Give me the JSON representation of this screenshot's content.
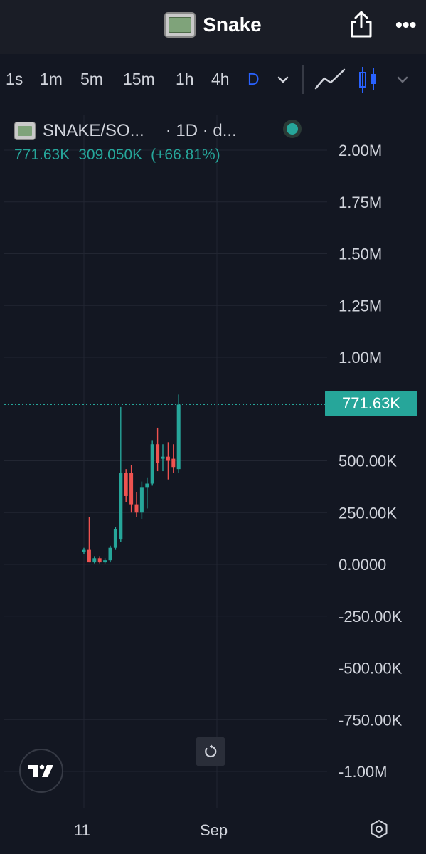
{
  "header": {
    "title": "Snake",
    "share_icon": "share-icon",
    "more_icon": "more-icon",
    "more_label": "•••"
  },
  "toolbar": {
    "intervals": [
      "1s",
      "1m",
      "5m",
      "15m",
      "1h",
      "4h",
      "D"
    ],
    "active_interval": "D",
    "chart_type_icons": [
      "line-chart-icon",
      "candlestick-icon"
    ]
  },
  "legend": {
    "symbol": "SNAKE/SO...",
    "interval_text": "· 1D · d...",
    "price": "771.63K",
    "change": "309.050K",
    "change_pct": "(+66.81%)"
  },
  "price_label": "771.63K",
  "colors": {
    "up": "#26a69a",
    "down": "#ef5350",
    "active_tab": "#2962ff",
    "background": "#131722"
  },
  "time_axis": {
    "labels": [
      "11",
      "Sep"
    ]
  },
  "chart_data": {
    "type": "candlestick",
    "y_axis": {
      "min": -1000000,
      "max": 2000000,
      "tick_labels": [
        "2.00M",
        "1.75M",
        "1.50M",
        "1.25M",
        "1.00M",
        "500.00K",
        "250.00K",
        "0.0000",
        "-250.00K",
        "-500.00K",
        "-750.00K",
        "-1.00M"
      ],
      "tick_values": [
        2000000,
        1750000,
        1500000,
        1250000,
        1000000,
        500000,
        250000,
        0,
        -250000,
        -500000,
        -750000,
        -1000000
      ]
    },
    "last_price": 771630,
    "candles": [
      {
        "o": 60000,
        "h": 80000,
        "l": 50000,
        "c": 70000
      },
      {
        "o": 70000,
        "h": 230000,
        "l": 10000,
        "c": 10000
      },
      {
        "o": 10000,
        "h": 40000,
        "l": 5000,
        "c": 30000
      },
      {
        "o": 30000,
        "h": 40000,
        "l": 5000,
        "c": 10000
      },
      {
        "o": 10000,
        "h": 30000,
        "l": 5000,
        "c": 20000
      },
      {
        "o": 20000,
        "h": 90000,
        "l": 10000,
        "c": 80000
      },
      {
        "o": 80000,
        "h": 180000,
        "l": 70000,
        "c": 170000
      },
      {
        "o": 120000,
        "h": 760000,
        "l": 110000,
        "c": 440000
      },
      {
        "o": 440000,
        "h": 460000,
        "l": 300000,
        "c": 330000
      },
      {
        "o": 440000,
        "h": 480000,
        "l": 250000,
        "c": 290000
      },
      {
        "o": 290000,
        "h": 350000,
        "l": 230000,
        "c": 250000
      },
      {
        "o": 250000,
        "h": 400000,
        "l": 220000,
        "c": 370000
      },
      {
        "o": 370000,
        "h": 420000,
        "l": 270000,
        "c": 390000
      },
      {
        "o": 390000,
        "h": 600000,
        "l": 380000,
        "c": 580000
      },
      {
        "o": 580000,
        "h": 660000,
        "l": 450000,
        "c": 490000
      },
      {
        "o": 510000,
        "h": 580000,
        "l": 450000,
        "c": 520000
      },
      {
        "o": 520000,
        "h": 590000,
        "l": 410000,
        "c": 500000
      },
      {
        "o": 510000,
        "h": 580000,
        "l": 440000,
        "c": 470000
      },
      {
        "o": 460000,
        "h": 820000,
        "l": 440000,
        "c": 771630
      }
    ]
  }
}
